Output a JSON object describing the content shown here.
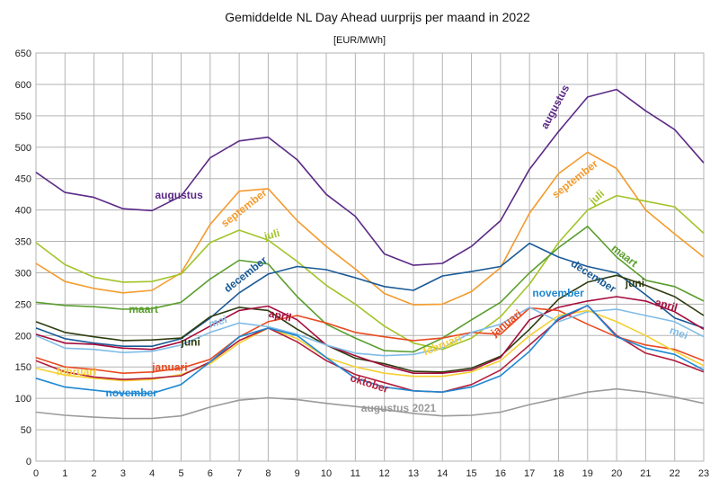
{
  "chart_data": {
    "type": "line",
    "title": "Gemiddelde NL Day Ahead uurprijs per maand in 2022",
    "subtitle": "[EUR/MWh]",
    "xlabel": "",
    "ylabel": "",
    "ylim": [
      0,
      650
    ],
    "xlim": [
      0,
      23
    ],
    "y_ticks": [
      0,
      50,
      100,
      150,
      200,
      250,
      300,
      350,
      400,
      450,
      500,
      550,
      600,
      650
    ],
    "x_ticks": [
      0,
      1,
      2,
      3,
      4,
      5,
      6,
      7,
      8,
      9,
      10,
      11,
      12,
      13,
      14,
      15,
      16,
      17,
      18,
      19,
      20,
      21,
      22,
      23
    ],
    "grid": true,
    "x": [
      0,
      1,
      2,
      3,
      4,
      5,
      6,
      7,
      8,
      9,
      10,
      11,
      12,
      13,
      14,
      15,
      16,
      17,
      18,
      19,
      20,
      21,
      22,
      23
    ],
    "series": [
      {
        "name": "augustus",
        "color": "#5b2a86",
        "label_at": [
          4.1,
          418
        ],
        "label_rot": 0,
        "values": [
          460,
          428,
          420,
          402,
          399,
          422,
          483,
          510,
          516,
          480,
          425,
          390,
          330,
          312,
          315,
          342,
          383,
          465,
          525,
          580,
          592,
          558,
          528,
          475
        ]
      },
      {
        "name": "september",
        "color": "#f39b2e",
        "label_at": [
          6.5,
          372
        ],
        "label_rot": -38,
        "values": [
          315,
          286,
          275,
          268,
          272,
          300,
          377,
          430,
          434,
          383,
          342,
          306,
          267,
          249,
          250,
          270,
          308,
          395,
          458,
          492,
          466,
          400,
          362,
          325
        ]
      },
      {
        "name": "juli",
        "color": "#a2c42a",
        "label_at": [
          7.9,
          352
        ],
        "label_rot": -15,
        "values": [
          348,
          313,
          293,
          285,
          286,
          298,
          348,
          368,
          352,
          318,
          280,
          250,
          215,
          188,
          178,
          196,
          230,
          282,
          348,
          400,
          423,
          414,
          405,
          363
        ]
      },
      {
        "name": "maart",
        "color": "#5a9e2e",
        "label_at": [
          3.2,
          236
        ],
        "label_rot": 0,
        "values": [
          253,
          248,
          246,
          242,
          243,
          253,
          290,
          320,
          314,
          262,
          218,
          196,
          176,
          174,
          196,
          225,
          253,
          300,
          340,
          374,
          325,
          288,
          278,
          255
        ]
      },
      {
        "name": "december",
        "color": "#1a5a96",
        "label_at": [
          6.6,
          268
        ],
        "label_rot": -38,
        "values": [
          212,
          195,
          188,
          183,
          183,
          195,
          228,
          268,
          298,
          310,
          305,
          292,
          278,
          272,
          295,
          302,
          310,
          347,
          325,
          310,
          300,
          265,
          228,
          212
        ]
      },
      {
        "name": "juni",
        "color": "#2e3d10",
        "label_at": [
          5.0,
          184
        ],
        "label_rot": 0,
        "values": [
          222,
          205,
          198,
          192,
          193,
          196,
          230,
          245,
          240,
          210,
          185,
          164,
          155,
          143,
          142,
          148,
          167,
          210,
          258,
          285,
          296,
          280,
          262,
          232
        ]
      },
      {
        "name": "april",
        "color": "#a50c3c",
        "label_at": [
          8.0,
          230
        ],
        "label_rot": 12,
        "values": [
          202,
          188,
          186,
          180,
          178,
          190,
          215,
          240,
          247,
          225,
          185,
          168,
          152,
          140,
          140,
          145,
          165,
          225,
          245,
          255,
          262,
          255,
          238,
          210
        ]
      },
      {
        "name": "januari",
        "color": "#e84a20",
        "label_at": [
          4.0,
          144
        ],
        "label_rot": 0,
        "values": [
          165,
          150,
          146,
          140,
          142,
          148,
          162,
          198,
          222,
          232,
          220,
          205,
          198,
          192,
          196,
          205,
          202,
          244,
          240,
          218,
          198,
          185,
          178,
          160
        ]
      },
      {
        "name": "mei",
        "color": "#7fbce6",
        "label_at": [
          6.0,
          212
        ],
        "label_rot": -18,
        "values": [
          200,
          180,
          178,
          173,
          175,
          185,
          205,
          220,
          214,
          202,
          185,
          172,
          168,
          170,
          180,
          205,
          218,
          245,
          222,
          238,
          242,
          232,
          222,
          198
        ]
      },
      {
        "name": "februari",
        "color": "#f5d033",
        "label_at": [
          0.7,
          137
        ],
        "label_rot": 0,
        "values": [
          148,
          137,
          132,
          128,
          130,
          138,
          155,
          188,
          212,
          195,
          165,
          150,
          140,
          135,
          135,
          142,
          160,
          200,
          232,
          240,
          222,
          200,
          175,
          152
        ]
      },
      {
        "name": "oktober",
        "color": "#b31d3c",
        "label_at": [
          10.8,
          128
        ],
        "label_rot": 18,
        "values": [
          160,
          142,
          134,
          130,
          132,
          136,
          158,
          192,
          212,
          190,
          160,
          138,
          125,
          112,
          110,
          122,
          145,
          185,
          225,
          248,
          200,
          172,
          160,
          142
        ]
      },
      {
        "name": "november",
        "color": "#1e88d2",
        "label_at": [
          2.4,
          103
        ],
        "label_rot": 0,
        "values": [
          132,
          118,
          113,
          108,
          108,
          122,
          158,
          198,
          212,
          200,
          165,
          132,
          118,
          112,
          110,
          118,
          136,
          175,
          228,
          248,
          198,
          180,
          170,
          145
        ]
      },
      {
        "name": "augustus 2021",
        "color": "#9a9a9a",
        "label_at": [
          11.2,
          79
        ],
        "label_rot": 0,
        "values": [
          78,
          73,
          70,
          68,
          68,
          72,
          86,
          97,
          101,
          98,
          92,
          87,
          82,
          76,
          72,
          73,
          78,
          90,
          100,
          110,
          115,
          110,
          102,
          92
        ]
      }
    ],
    "extra_labels": [
      {
        "text": "augustus",
        "color": "#5b2a86",
        "at": [
          17.6,
          528
        ],
        "rot": -62
      },
      {
        "text": "september",
        "color": "#f39b2e",
        "at": [
          17.9,
          418
        ],
        "rot": -38
      },
      {
        "text": "juli",
        "color": "#a2c42a",
        "at": [
          19.2,
          408
        ],
        "rot": -42
      },
      {
        "text": "maart",
        "color": "#5a9e2e",
        "at": [
          19.8,
          337
        ],
        "rot": 38
      },
      {
        "text": "december",
        "color": "#1a5a96",
        "at": [
          18.4,
          312
        ],
        "rot": 33
      },
      {
        "text": "november",
        "color": "#1e88d2",
        "at": [
          17.1,
          262
        ],
        "rot": 0
      },
      {
        "text": "juni",
        "color": "#2e3d10",
        "at": [
          20.3,
          278
        ],
        "rot": 0
      },
      {
        "text": "april",
        "color": "#a50c3c",
        "at": [
          21.3,
          248
        ],
        "rot": 15
      },
      {
        "text": "januari",
        "color": "#e84a20",
        "at": [
          15.8,
          198
        ],
        "rot": -38
      },
      {
        "text": "februari",
        "color": "#f5d033",
        "at": [
          13.4,
          168
        ],
        "rot": -22
      },
      {
        "text": "mei",
        "color": "#7fbce6",
        "at": [
          21.8,
          204
        ],
        "rot": 20
      }
    ]
  }
}
